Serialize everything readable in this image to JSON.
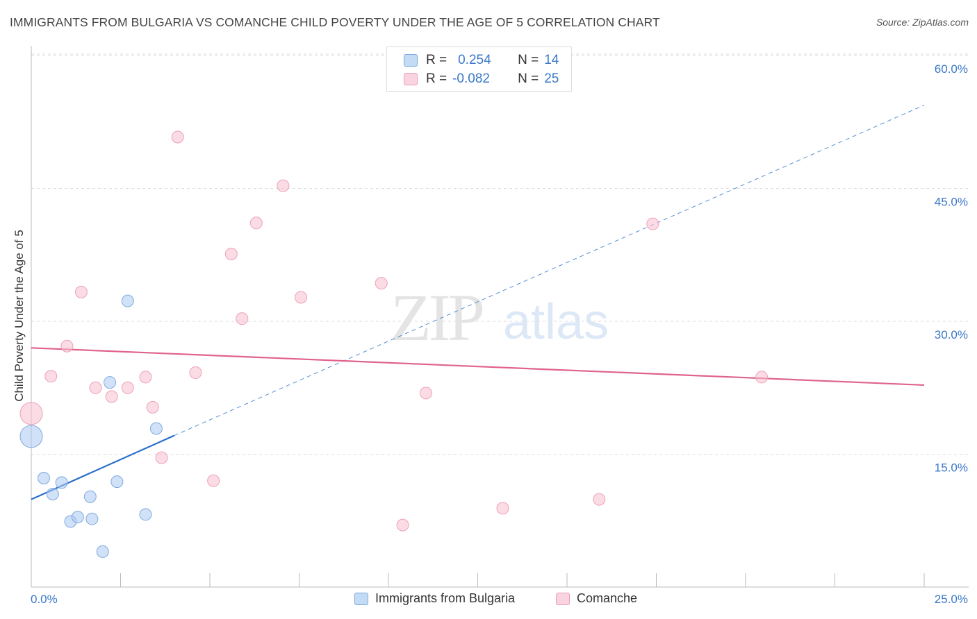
{
  "title": "IMMIGRANTS FROM BULGARIA VS COMANCHE CHILD POVERTY UNDER THE AGE OF 5 CORRELATION CHART",
  "source": "Source: ZipAtlas.com",
  "watermark": {
    "zip": "ZIP",
    "atlas": "atlas"
  },
  "legend_stats": [
    {
      "r_label": "R =",
      "r_value": "0.254",
      "n_label": "N =",
      "n_value": "14",
      "color": "#a9c9f2"
    },
    {
      "r_label": "R =",
      "r_value": "-0.082",
      "n_label": "N =",
      "n_value": "25",
      "color": "#f7bfd0"
    }
  ],
  "legend_series": [
    {
      "name": "Immigrants from Bulgaria",
      "color": "#a9c9f2"
    },
    {
      "name": "Comanche",
      "color": "#f7bfd0"
    }
  ],
  "chart_data": {
    "type": "scatter",
    "title": "IMMIGRANTS FROM BULGARIA VS COMANCHE CHILD POVERTY UNDER THE AGE OF 5 CORRELATION CHART",
    "xlabel": "",
    "ylabel": "Child Poverty Under the Age of 5",
    "xlim": [
      0,
      25
    ],
    "ylim": [
      0,
      60
    ],
    "x_tick_labels": [
      "0.0%",
      "25.0%"
    ],
    "y_tick_values": [
      15,
      30,
      45,
      60
    ],
    "y_tick_labels": [
      "15.0%",
      "30.0%",
      "45.0%",
      "60.0%"
    ],
    "grid": true,
    "series": [
      {
        "name": "Immigrants from Bulgaria",
        "color": "#a9c9f2",
        "stroke": "#7fa9de",
        "points": [
          {
            "x": 0.0,
            "y": 17.0,
            "size": "large"
          },
          {
            "x": 0.35,
            "y": 12.3
          },
          {
            "x": 0.6,
            "y": 10.5
          },
          {
            "x": 0.85,
            "y": 11.8
          },
          {
            "x": 1.1,
            "y": 7.4
          },
          {
            "x": 1.3,
            "y": 7.9
          },
          {
            "x": 1.65,
            "y": 10.2
          },
          {
            "x": 1.7,
            "y": 7.7
          },
          {
            "x": 2.0,
            "y": 4.0
          },
          {
            "x": 2.2,
            "y": 23.1
          },
          {
            "x": 2.4,
            "y": 11.9
          },
          {
            "x": 2.7,
            "y": 32.3
          },
          {
            "x": 3.2,
            "y": 8.2
          },
          {
            "x": 3.5,
            "y": 17.9
          }
        ],
        "trend": {
          "x0": 0,
          "y0": 9.9,
          "x1": 4.0,
          "y1": 17.1,
          "dash_to_x": 25,
          "dash_to_y": 54.4,
          "color": "#2b6fcc"
        }
      },
      {
        "name": "Comanche",
        "color": "#f7bfd0",
        "stroke": "#eea0b8",
        "points": [
          {
            "x": 0.0,
            "y": 19.6,
            "size": "large"
          },
          {
            "x": 0.55,
            "y": 23.8
          },
          {
            "x": 1.0,
            "y": 27.2
          },
          {
            "x": 1.4,
            "y": 33.3
          },
          {
            "x": 1.8,
            "y": 22.5
          },
          {
            "x": 2.25,
            "y": 21.5
          },
          {
            "x": 2.7,
            "y": 22.5
          },
          {
            "x": 3.2,
            "y": 23.7
          },
          {
            "x": 3.4,
            "y": 20.3
          },
          {
            "x": 3.65,
            "y": 14.6
          },
          {
            "x": 4.1,
            "y": 50.8
          },
          {
            "x": 4.6,
            "y": 24.2
          },
          {
            "x": 5.1,
            "y": 12.0
          },
          {
            "x": 5.6,
            "y": 37.6
          },
          {
            "x": 5.9,
            "y": 30.3
          },
          {
            "x": 6.3,
            "y": 41.1
          },
          {
            "x": 7.05,
            "y": 45.3
          },
          {
            "x": 7.55,
            "y": 32.7
          },
          {
            "x": 9.8,
            "y": 34.3
          },
          {
            "x": 10.4,
            "y": 7.0
          },
          {
            "x": 11.05,
            "y": 21.9
          },
          {
            "x": 13.2,
            "y": 8.9
          },
          {
            "x": 15.9,
            "y": 9.9
          },
          {
            "x": 17.4,
            "y": 41.0
          },
          {
            "x": 20.45,
            "y": 23.7
          }
        ],
        "trend": {
          "x0": 0,
          "y0": 27.0,
          "x1": 25,
          "y1": 22.8,
          "color": "#e0628d"
        }
      }
    ]
  }
}
